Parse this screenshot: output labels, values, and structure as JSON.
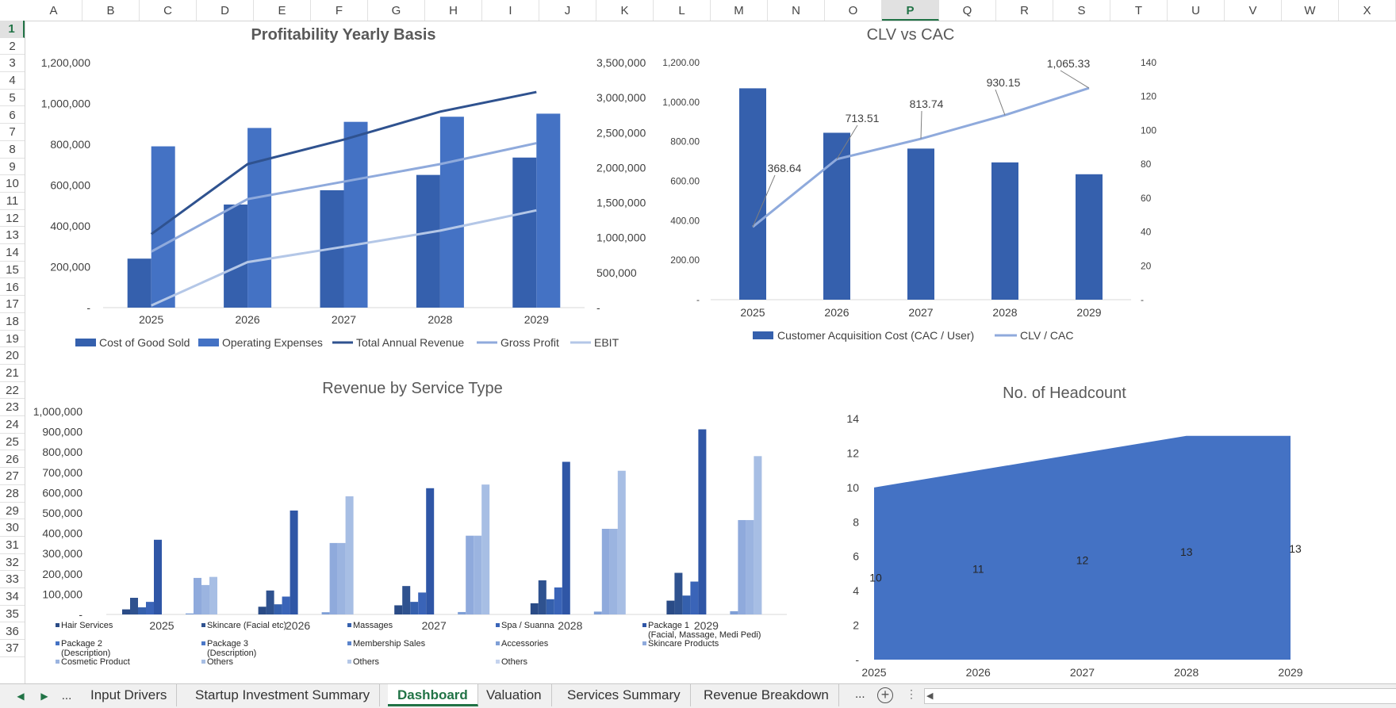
{
  "columns": [
    "A",
    "B",
    "C",
    "D",
    "E",
    "F",
    "G",
    "H",
    "I",
    "J",
    "K",
    "L",
    "M",
    "N",
    "O",
    "P",
    "Q",
    "R",
    "S",
    "T",
    "U",
    "V",
    "W",
    "X"
  ],
  "active_column": "P",
  "rows": [
    "1",
    "2",
    "3",
    "4",
    "5",
    "6",
    "7",
    "8",
    "9",
    "10",
    "11",
    "12",
    "13",
    "14",
    "15",
    "16",
    "17",
    "18",
    "19",
    "20",
    "21",
    "22",
    "23",
    "24",
    "25",
    "26",
    "27",
    "28",
    "29",
    "30",
    "31",
    "32",
    "33",
    "34",
    "35",
    "36",
    "37"
  ],
  "active_row": "1",
  "tabs": {
    "nav_prev": "◀",
    "nav_next": "▶",
    "more_left": "...",
    "items": [
      {
        "label": "Input Drivers",
        "active": false
      },
      {
        "label": "Startup Investment Summary",
        "active": false
      },
      {
        "label": "Dashboard",
        "active": true
      },
      {
        "label": "Valuation",
        "active": false
      },
      {
        "label": "Services Summary",
        "active": false
      },
      {
        "label": "Revenue Breakdown",
        "active": false
      }
    ],
    "more_right": "...",
    "add_sheet": "+",
    "options": "⋮",
    "scroll_arrow": "◀"
  },
  "colors": {
    "dark_blue": "#2f528f",
    "mid_blue": "#4472c4",
    "bar_dark": "#3560ad",
    "light_blue": "#8faadc",
    "pale_blue": "#b4c7e7",
    "excel_green": "#217346"
  },
  "chart_data": [
    {
      "id": "profitability",
      "type": "bar",
      "title": "Profitability Yearly Basis",
      "categories": [
        "2025",
        "2026",
        "2027",
        "2028",
        "2029"
      ],
      "y_left_ticks": [
        "-",
        "200,000",
        "400,000",
        "600,000",
        "800,000",
        "1,000,000",
        "1,200,000"
      ],
      "y_right_ticks": [
        "-",
        "500,000",
        "1,000,000",
        "1,500,000",
        "2,000,000",
        "2,500,000",
        "3,000,000",
        "3,500,000"
      ],
      "ylim_left": [
        0,
        1200000
      ],
      "ylim_right": [
        0,
        3500000
      ],
      "series": [
        {
          "name": "Cost of Good Sold",
          "kind": "bar",
          "axis": "left",
          "values": [
            240000,
            505000,
            575000,
            650000,
            735000
          ]
        },
        {
          "name": "Operating Expenses",
          "kind": "bar",
          "axis": "left",
          "values": [
            790000,
            880000,
            910000,
            935000,
            950000
          ]
        },
        {
          "name": "Total Annual Revenue",
          "kind": "line",
          "axis": "right",
          "values": [
            1050000,
            2050000,
            2400000,
            2800000,
            3080000
          ]
        },
        {
          "name": "Gross Profit",
          "kind": "line",
          "axis": "right",
          "values": [
            800000,
            1550000,
            1800000,
            2050000,
            2350000
          ]
        },
        {
          "name": "EBIT",
          "kind": "line",
          "axis": "right",
          "values": [
            30000,
            650000,
            870000,
            1100000,
            1390000
          ]
        }
      ],
      "legend": "bottom"
    },
    {
      "id": "clv_cac",
      "type": "bar",
      "title": "CLV vs CAC",
      "categories": [
        "2025",
        "2026",
        "2027",
        "2028",
        "2029"
      ],
      "y_left_ticks": [
        "-",
        "200.00",
        "400.00",
        "600.00",
        "800.00",
        "1,000.00",
        "1,200.00"
      ],
      "y_right_ticks": [
        "-",
        "20",
        "40",
        "60",
        "80",
        "100",
        "120",
        "140"
      ],
      "ylim_left": [
        0,
        1200
      ],
      "ylim_right": [
        0,
        140
      ],
      "series": [
        {
          "name": "Customer Acquisition  Cost (CAC / User)",
          "kind": "bar",
          "axis": "left",
          "values": [
            1070,
            845,
            765,
            695,
            635
          ]
        },
        {
          "name": "CLV / CAC",
          "kind": "line",
          "axis": "right",
          "values": [
            43,
            83,
            95,
            109,
            125
          ]
        }
      ],
      "data_labels": [
        "368.64",
        "713.51",
        "813.74",
        "930.15",
        "1,065.33"
      ],
      "legend": "bottom"
    },
    {
      "id": "revenue_by_service",
      "type": "bar",
      "title": "Revenue by Service Type",
      "categories": [
        "2025",
        "2026",
        "2027",
        "2028",
        "2029"
      ],
      "y_ticks": [
        "-",
        "100,000",
        "200,000",
        "300,000",
        "400,000",
        "500,000",
        "600,000",
        "700,000",
        "800,000",
        "900,000",
        "1,000,000"
      ],
      "ylim": [
        0,
        1000000
      ],
      "series": [
        {
          "name": "Hair Services",
          "values": [
            25000,
            38000,
            45000,
            55000,
            68000
          ]
        },
        {
          "name": "Skincare (Facial etc)",
          "values": [
            82000,
            118000,
            140000,
            168000,
            205000
          ]
        },
        {
          "name": "Massages",
          "values": [
            35000,
            50000,
            62000,
            75000,
            93000
          ]
        },
        {
          "name": "Spa / Suanna",
          "values": [
            62000,
            88000,
            108000,
            133000,
            162000
          ]
        },
        {
          "name": "Package 1\n(Facial, Massage, Medi Pedi)",
          "values": [
            368000,
            512000,
            622000,
            752000,
            912000
          ]
        },
        {
          "name": "Package 2\n(Description)",
          "values": [
            0,
            0,
            0,
            0,
            0
          ]
        },
        {
          "name": "Package 3\n(Description)",
          "values": [
            0,
            0,
            0,
            0,
            0
          ]
        },
        {
          "name": "Membership Sales",
          "values": [
            0,
            0,
            0,
            0,
            0
          ]
        },
        {
          "name": "Accessories",
          "values": [
            5000,
            11000,
            12000,
            14000,
            16000
          ]
        },
        {
          "name": "Skincare Products",
          "values": [
            180000,
            352000,
            388000,
            422000,
            465000
          ]
        },
        {
          "name": "Cosmetic Product",
          "values": [
            145000,
            352000,
            388000,
            422000,
            465000
          ]
        },
        {
          "name": "Others",
          "values": [
            185000,
            582000,
            640000,
            708000,
            780000
          ]
        },
        {
          "name": "Others",
          "values": [
            0,
            0,
            0,
            0,
            0
          ]
        },
        {
          "name": "Others",
          "values": [
            0,
            0,
            0,
            0,
            0
          ]
        }
      ],
      "legend": "bottom"
    },
    {
      "id": "headcount",
      "type": "area",
      "title": "No. of Headcount",
      "categories": [
        "2025",
        "2026",
        "2027",
        "2028",
        "2029"
      ],
      "values": [
        10,
        11,
        12,
        13,
        13
      ],
      "data_labels": [
        "10",
        "11",
        "12",
        "13",
        "13"
      ],
      "y_ticks": [
        "-",
        "2",
        "4",
        "6",
        "8",
        "10",
        "12",
        "14"
      ],
      "ylim": [
        0,
        14
      ]
    }
  ]
}
